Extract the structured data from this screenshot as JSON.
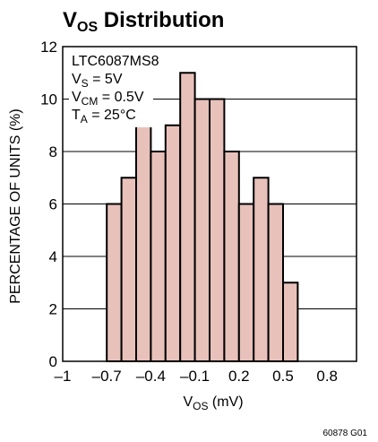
{
  "chart_data": {
    "type": "bar",
    "title_main": "V",
    "title_sub": "OS",
    "title_rest": " Distribution",
    "xlabel_main": "V",
    "xlabel_sub": "OS",
    "xlabel_rest": " (mV)",
    "ylabel": "PERCENTAGE OF UNITS (%)",
    "xlim": [
      -1,
      1
    ],
    "ylim": [
      0,
      12
    ],
    "x_ticks": [
      -1,
      -0.7,
      -0.4,
      -0.1,
      0.2,
      0.5,
      0.8
    ],
    "x_tick_labels": [
      "–1",
      "–0.7",
      "–0.4",
      "–0.1",
      "0.2",
      "0.5",
      "0.8"
    ],
    "y_ticks": [
      0,
      2,
      4,
      6,
      8,
      10,
      12
    ],
    "y_tick_labels": [
      "0",
      "2",
      "4",
      "6",
      "8",
      "10",
      "12"
    ],
    "grid": true,
    "bar_width": 0.1,
    "bar_centers": [
      -0.65,
      -0.55,
      -0.45,
      -0.35,
      -0.25,
      -0.15,
      -0.05,
      0.05,
      0.15,
      0.25,
      0.35,
      0.45,
      0.55
    ],
    "values": [
      6,
      7,
      9,
      8,
      9,
      11,
      10,
      10,
      8,
      6,
      7,
      6,
      3
    ],
    "bar_color": "#e8c1bb",
    "annotations": [
      {
        "main": "LTC6087MS8",
        "sub": "",
        "rest": ""
      },
      {
        "main": "V",
        "sub": "S",
        "rest": " = 5V"
      },
      {
        "main": "V",
        "sub": "CM",
        "rest": " = 0.5V"
      },
      {
        "main": "T",
        "sub": "A",
        "rest": " = 25°C"
      }
    ],
    "figure_id": "60878 G01"
  }
}
